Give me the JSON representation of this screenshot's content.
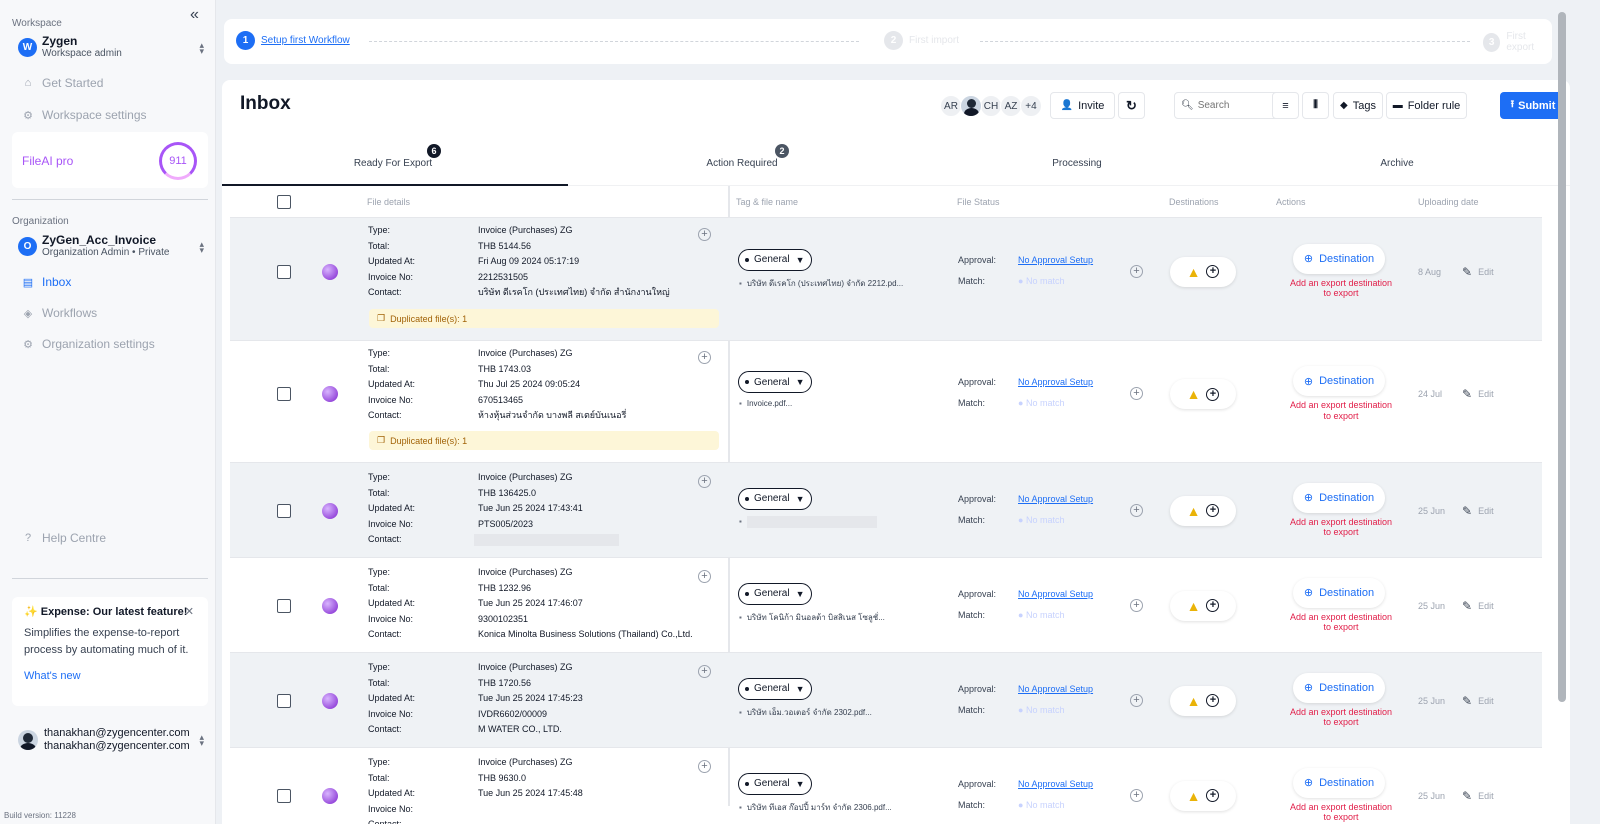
{
  "sidebar": {
    "workspace_label": "Workspace",
    "workspace": {
      "initial": "W",
      "name": "Zygen",
      "role": "Workspace admin"
    },
    "nav_top": [
      {
        "label": "Get Started",
        "icon": "home-icon"
      },
      {
        "label": "Workspace settings",
        "icon": "gear-icon"
      }
    ],
    "plan": {
      "name": "FileAI pro",
      "credits": "911"
    },
    "organization_label": "Organization",
    "organization": {
      "initial": "O",
      "name": "ZyGen_Acc_Invoice",
      "role": "Organization Admin • Private"
    },
    "nav_org": [
      {
        "label": "Inbox",
        "icon": "inbox-icon",
        "active": true
      },
      {
        "label": "Workflows",
        "icon": "layers-icon"
      },
      {
        "label": "Organization settings",
        "icon": "gear-icon"
      }
    ],
    "help": "Help Centre",
    "promo": {
      "title": "✨ Expense: Our latest feature!",
      "desc": "Simplifies the expense-to-report process by automating much of it.",
      "link": "What's new"
    },
    "user": {
      "line1": "thanakhan@zygencenter.com",
      "line2": "thanakhan@zygencenter.com"
    },
    "build": "Build version: 11228"
  },
  "stepper": {
    "steps": [
      {
        "n": "1",
        "label": "Setup first Workflow"
      },
      {
        "n": "2",
        "label": "First import"
      },
      {
        "n": "3",
        "label": "First export"
      }
    ]
  },
  "header": {
    "title": "Inbox",
    "avatars": [
      "AR",
      "",
      "CH",
      "AZ",
      "+4"
    ],
    "invite": "Invite",
    "search_placeholder": "Search",
    "tags": "Tags",
    "folder_rule": "Folder rule",
    "submit": "Submit"
  },
  "tabs": [
    {
      "label": "Ready For Export",
      "badge": "6"
    },
    {
      "label": "Action Required",
      "badge": "2"
    },
    {
      "label": "Processing",
      "badge": ""
    },
    {
      "label": "Archive",
      "badge": ""
    }
  ],
  "columns": [
    "File details",
    "Tag & file name",
    "File Status",
    "Destinations",
    "Actions",
    "Uploading date"
  ],
  "field_labels": {
    "type": "Type:",
    "total": "Total:",
    "updated": "Updated At:",
    "invoice": "Invoice No:",
    "contact": "Contact:",
    "approval": "Approval:",
    "match": "Match:"
  },
  "colors": {
    "accent": "#1d6ef5",
    "warning": "#eab308",
    "danger": "#e11d48",
    "duplicate_bg": "#fdf6d8"
  },
  "rows": [
    {
      "type": "Invoice (Purchases) ZG",
      "total": "THB 5144.56",
      "updated": "Fri Aug 09 2024 05:17:19",
      "invoice": "2212531505",
      "contact": "บริษัท ดีเรคโก (ประเทศไทย) จำกัด สำนักงานใหญ่",
      "duplicate": "Duplicated file(s): 1",
      "tag": "General",
      "file": "บริษัท ดีเรคโก (ประเทศไทย) จำกัด 2212.pd...",
      "approval": "No Approval Setup",
      "match": "No match",
      "destination": "Destination",
      "dest_warning": "Add an export destination to export",
      "date": "8 Aug",
      "edit": "Edit"
    },
    {
      "type": "Invoice (Purchases) ZG",
      "total": "THB 1743.03",
      "updated": "Thu Jul 25 2024 09:05:24",
      "invoice": "670513465",
      "contact": "ห้างหุ้นส่วนจำกัด บางพลี สเตย์บันเนอรี่",
      "duplicate": "Duplicated file(s): 1",
      "tag": "General",
      "file": "Invoice.pdf...",
      "approval": "No Approval Setup",
      "match": "No match",
      "destination": "Destination",
      "dest_warning": "Add an export destination to export",
      "date": "24 Jul",
      "edit": "Edit"
    },
    {
      "type": "Invoice (Purchases) ZG",
      "total": "THB 136425.0",
      "updated": "Tue Jun 25 2024 17:43:41",
      "invoice": "PTS005/2023",
      "contact": "",
      "duplicate": "",
      "tag": "General",
      "file": "",
      "approval": "No Approval Setup",
      "match": "No match",
      "destination": "Destination",
      "dest_warning": "Add an export destination to export",
      "date": "25 Jun",
      "edit": "Edit"
    },
    {
      "type": "Invoice (Purchases) ZG",
      "total": "THB 1232.96",
      "updated": "Tue Jun 25 2024 17:46:07",
      "invoice": "9300102351",
      "contact": "Konica Minolta Business Solutions (Thailand) Co.,Ltd.",
      "duplicate": "",
      "tag": "General",
      "file": "บริษัท โคนิก้า มินอลต้า บิสสิเนส โซลูชั่...",
      "approval": "No Approval Setup",
      "match": "No match",
      "destination": "Destination",
      "dest_warning": "Add an export destination to export",
      "date": "25 Jun",
      "edit": "Edit"
    },
    {
      "type": "Invoice (Purchases) ZG",
      "total": "THB 1720.56",
      "updated": "Tue Jun 25 2024 17:45:23",
      "invoice": "IVDR6602/00009",
      "contact": "M WATER CO., LTD.",
      "duplicate": "",
      "tag": "General",
      "file": "บริษัท เอ็ม.วอเตอร์ จำกัด 2302.pdf...",
      "approval": "No Approval Setup",
      "match": "No match",
      "destination": "Destination",
      "dest_warning": "Add an export destination to export",
      "date": "25 Jun",
      "edit": "Edit"
    },
    {
      "type": "Invoice (Purchases) ZG",
      "total": "THB 9630.0",
      "updated": "Tue Jun 25 2024 17:45:48",
      "invoice": "",
      "contact": "",
      "duplicate": "",
      "tag": "General",
      "file": "บริษัท ทีเอส ก๊อปปี้ มาร์ท จำกัด 2306.pdf...",
      "approval": "No Approval Setup",
      "match": "No match",
      "destination": "Destination",
      "dest_warning": "Add an export destination to export",
      "date": "25 Jun",
      "edit": "Edit"
    }
  ]
}
